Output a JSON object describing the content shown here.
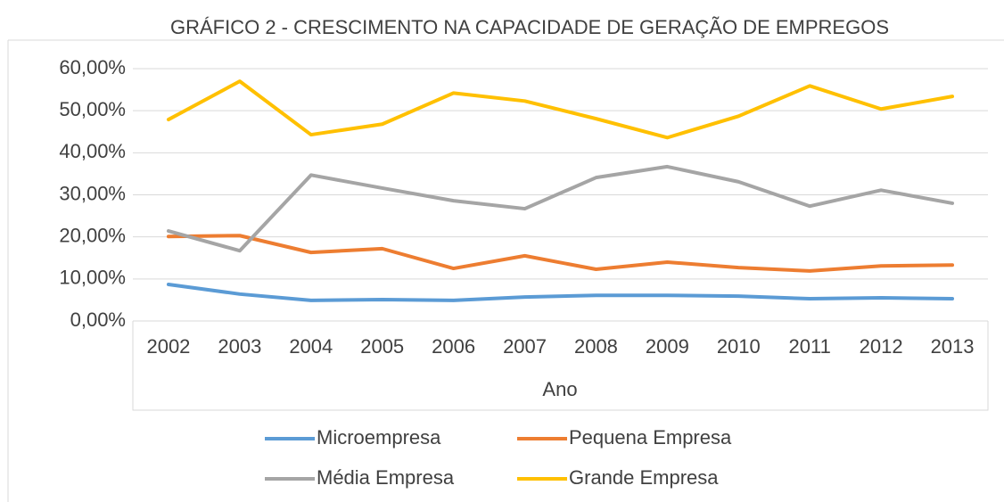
{
  "chart_data": {
    "type": "line",
    "title": "GRÁFICO 2 - CRESCIMENTO NA CAPACIDADE DE GERAÇÃO DE EMPREGOS",
    "x_label": "Ano",
    "categories": [
      "2002",
      "2003",
      "2004",
      "2005",
      "2006",
      "2007",
      "2008",
      "2009",
      "2010",
      "2011",
      "2012",
      "2013"
    ],
    "series": [
      {
        "name": "Microempresa",
        "color": "#5b9bd5",
        "values": [
          8.7,
          6.4,
          4.9,
          5.1,
          4.9,
          5.7,
          6.1,
          6.1,
          5.9,
          5.3,
          5.5,
          5.3
        ]
      },
      {
        "name": "Pequena Empresa",
        "color": "#ed7d31",
        "values": [
          20.1,
          20.3,
          16.3,
          17.2,
          12.5,
          15.5,
          12.3,
          14.0,
          12.7,
          11.9,
          13.1,
          13.3
        ]
      },
      {
        "name": "Média Empresa",
        "color": "#a5a5a5",
        "values": [
          21.4,
          16.7,
          34.7,
          31.6,
          28.6,
          26.7,
          34.1,
          36.7,
          33.1,
          27.3,
          31.1,
          28.0
        ]
      },
      {
        "name": "Grande Empresa",
        "color": "#ffc000",
        "values": [
          47.9,
          57.0,
          44.3,
          46.8,
          54.2,
          52.3,
          48.1,
          43.6,
          48.7,
          55.9,
          50.4,
          53.4
        ]
      }
    ],
    "ylim": [
      0,
      60
    ],
    "yticks": [
      {
        "value": 0,
        "label": "0,00%"
      },
      {
        "value": 10,
        "label": "10,00%"
      },
      {
        "value": 20,
        "label": "20,00%"
      },
      {
        "value": 30,
        "label": "30,00%"
      },
      {
        "value": 40,
        "label": "40,00%"
      },
      {
        "value": 50,
        "label": "50,00%"
      },
      {
        "value": 60,
        "label": "60,00%"
      }
    ],
    "grid": true,
    "legend": "bottom"
  }
}
